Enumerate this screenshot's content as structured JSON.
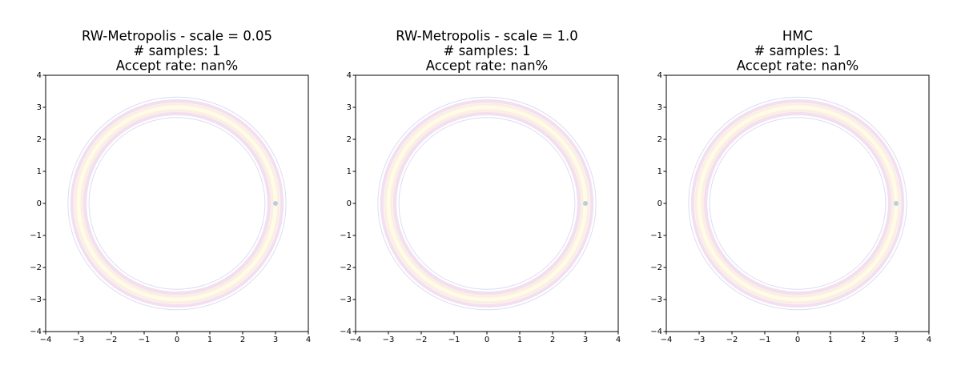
{
  "chart_data": [
    {
      "type": "scatter",
      "title": [
        "RW-Metropolis - scale = 0.05",
        "# samples: 1",
        "Accept rate: nan%"
      ],
      "x": [
        3
      ],
      "values": [
        0
      ],
      "color": "#b9cfdc",
      "xlim": [
        -4,
        4
      ],
      "ylim": [
        -4,
        4
      ],
      "xticks": [
        {
          "value": -4,
          "label": "−4"
        },
        {
          "value": -3,
          "label": "−3"
        },
        {
          "value": -2,
          "label": "−2"
        },
        {
          "value": -1,
          "label": "−1"
        },
        0,
        1,
        2,
        3,
        4
      ],
      "yticks": [
        {
          "value": -4,
          "label": "−4"
        },
        {
          "value": -3,
          "label": "−3"
        },
        {
          "value": -2,
          "label": "−2"
        },
        {
          "value": -1,
          "label": "−1"
        },
        0,
        1,
        2,
        3,
        4
      ]
    },
    {
      "type": "scatter",
      "title": [
        "RW-Metropolis - scale = 1.0",
        "# samples: 1",
        "Accept rate: nan%"
      ],
      "x": [
        3
      ],
      "values": [
        0
      ],
      "color": "#b9cfdc",
      "xlim": [
        -4,
        4
      ],
      "ylim": [
        -4,
        4
      ],
      "xticks": [
        {
          "value": -4,
          "label": "−4"
        },
        {
          "value": -3,
          "label": "−3"
        },
        {
          "value": -2,
          "label": "−2"
        },
        {
          "value": -1,
          "label": "−1"
        },
        0,
        1,
        2,
        3,
        4
      ],
      "yticks": [
        {
          "value": -4,
          "label": "−4"
        },
        {
          "value": -3,
          "label": "−3"
        },
        {
          "value": -2,
          "label": "−2"
        },
        {
          "value": -1,
          "label": "−1"
        },
        0,
        1,
        2,
        3,
        4
      ]
    },
    {
      "type": "scatter",
      "title": [
        "HMC",
        "# samples: 1",
        "Accept rate: nan%"
      ],
      "x": [
        3
      ],
      "values": [
        0
      ],
      "color": "#b9cfdc",
      "xlim": [
        -4,
        4
      ],
      "ylim": [
        -4,
        4
      ],
      "xticks": [
        {
          "value": -4,
          "label": "−4"
        },
        {
          "value": -3,
          "label": "−3"
        },
        {
          "value": -2,
          "label": "−2"
        },
        {
          "value": -1,
          "label": "−1"
        },
        0,
        1,
        2,
        3,
        4
      ],
      "yticks": [
        {
          "value": -4,
          "label": "−4"
        },
        {
          "value": -3,
          "label": "−3"
        },
        {
          "value": -2,
          "label": "−2"
        },
        {
          "value": -1,
          "label": "−1"
        },
        0,
        1,
        2,
        3,
        4
      ]
    }
  ]
}
